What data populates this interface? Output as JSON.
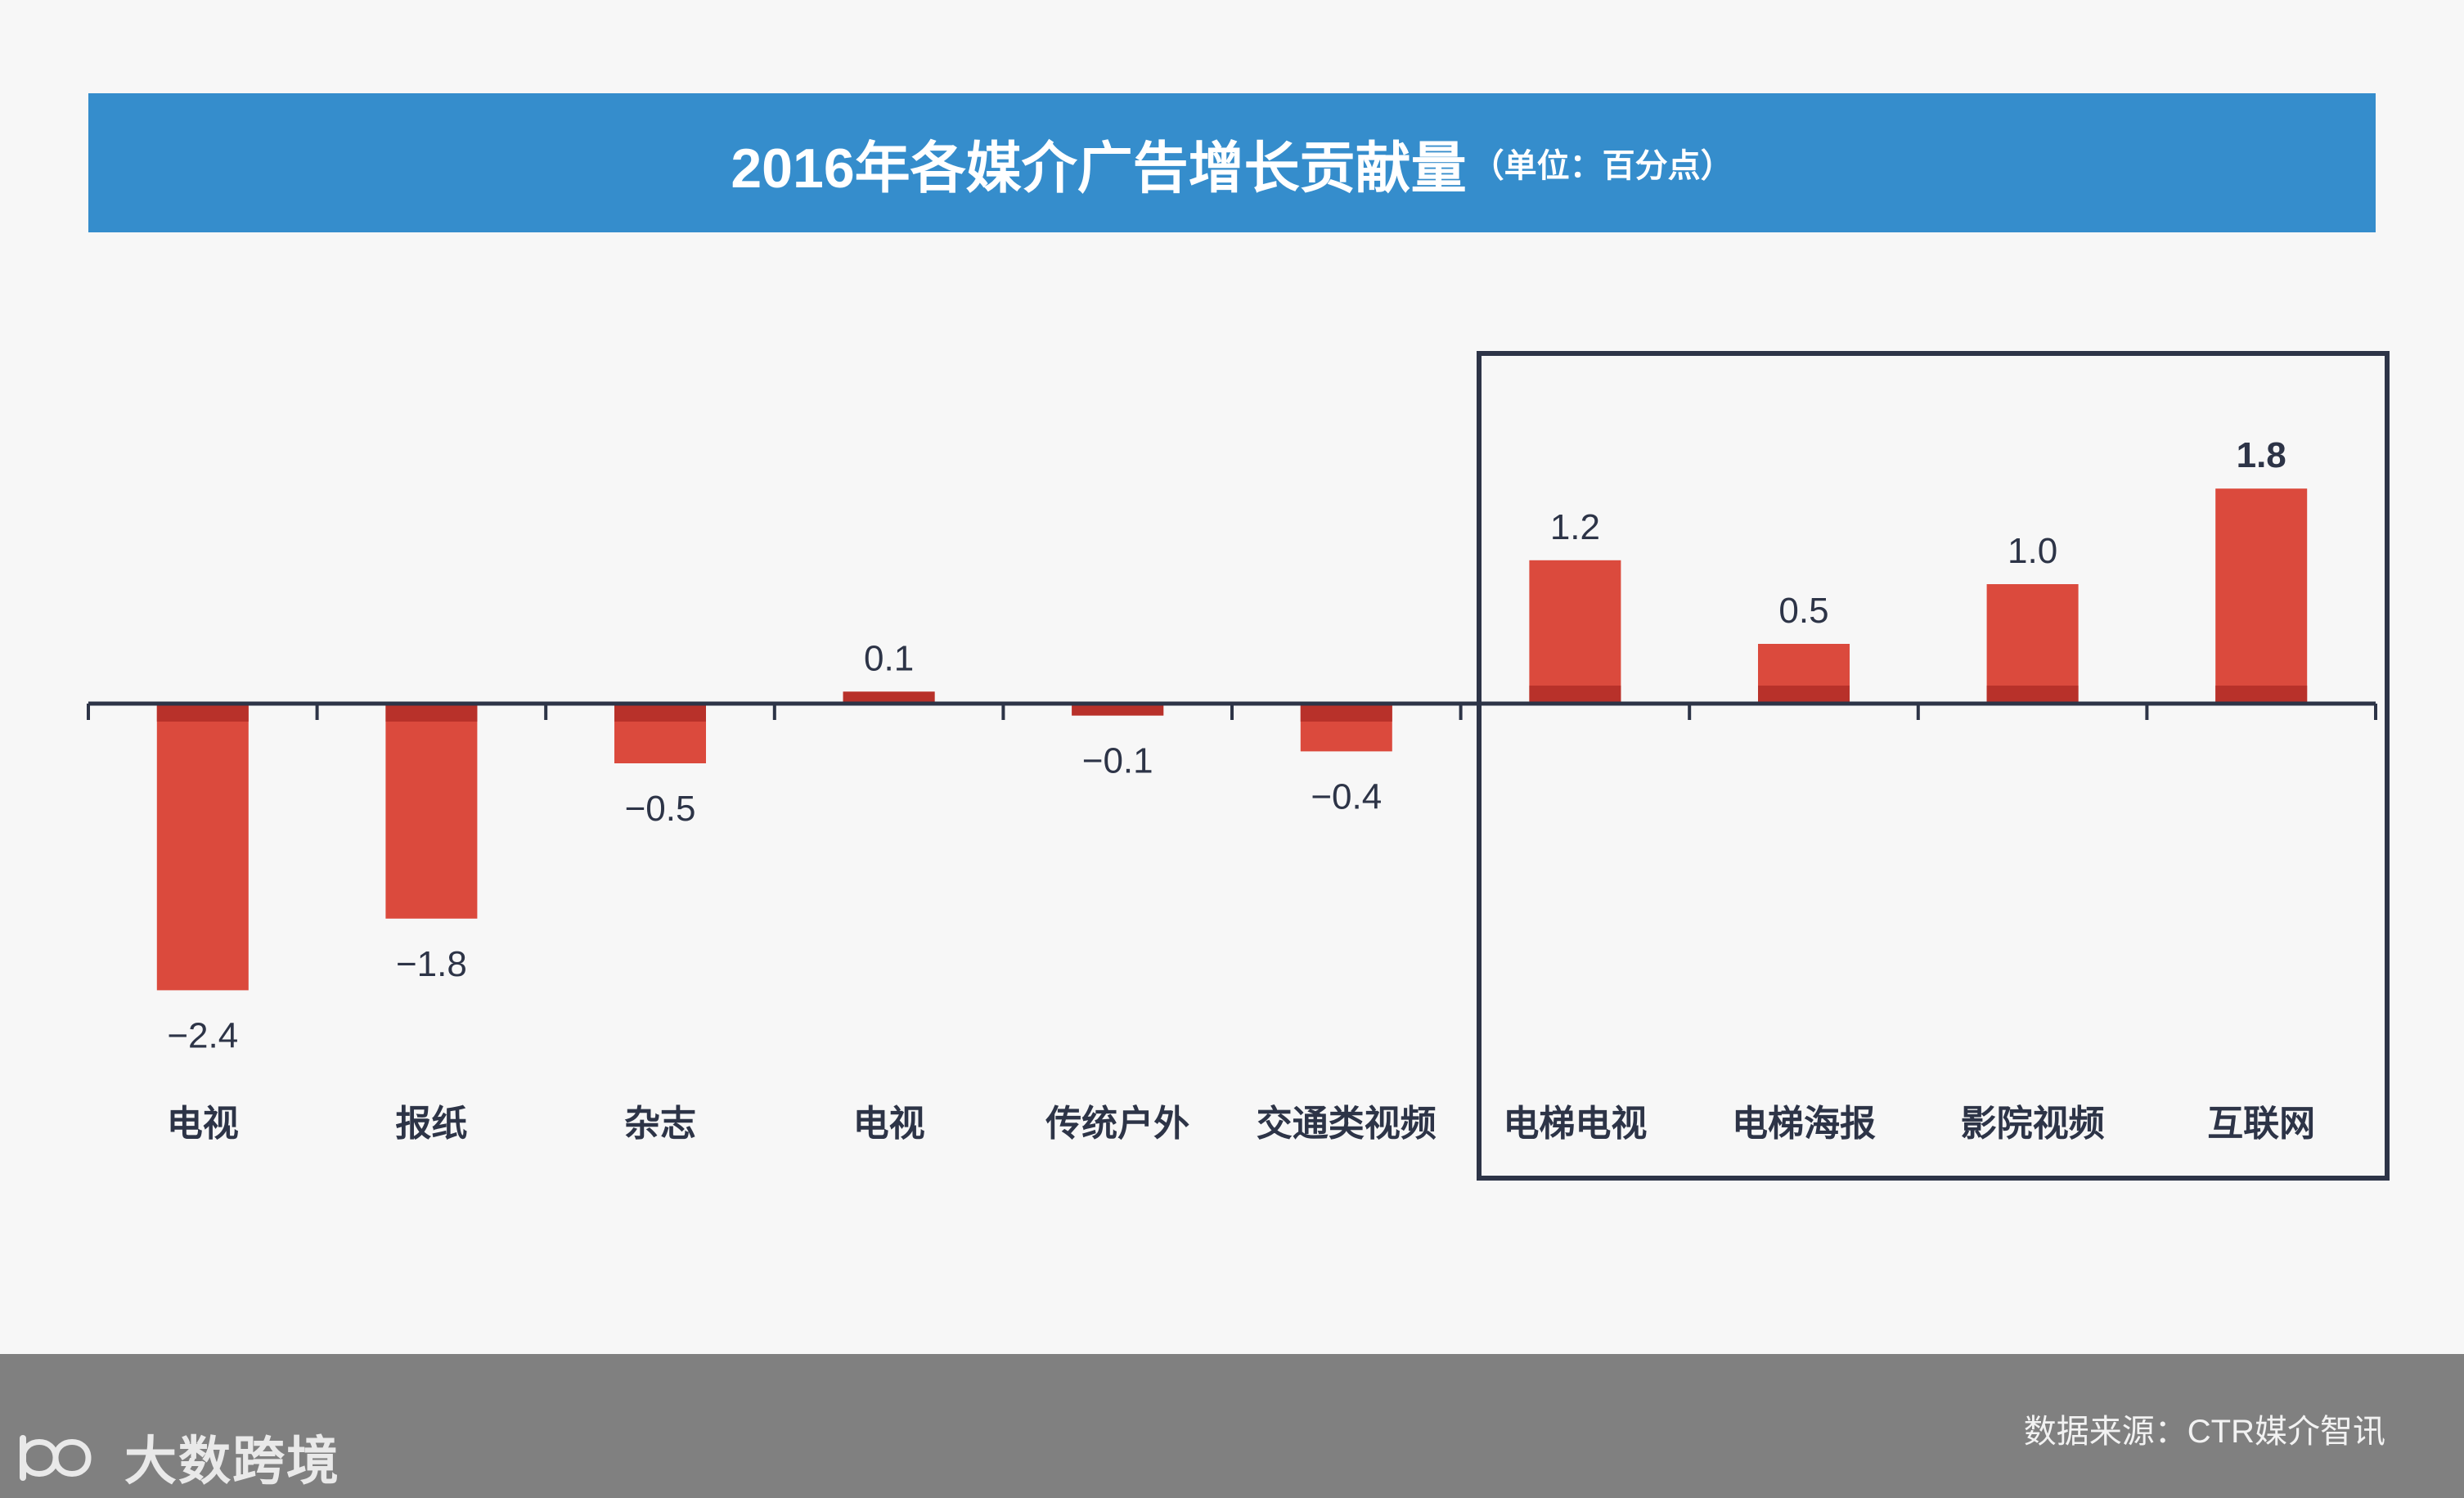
{
  "header": {
    "title": "2016年各媒介广告增长贡献量",
    "unit": "（单位：百分点）"
  },
  "chart_data": {
    "type": "bar",
    "title": "2016年各媒介广告增长贡献量",
    "subtitle": "（单位：百分点）",
    "categories": [
      "电视",
      "报纸",
      "杂志",
      "电视",
      "传统户外",
      "交通类视频",
      "电梯电视",
      "电梯海报",
      "影院视频",
      "互联网"
    ],
    "values": [
      -2.4,
      -1.8,
      -0.5,
      0.1,
      -0.1,
      -0.4,
      1.2,
      0.5,
      1.0,
      1.8
    ],
    "value_labels": [
      "−2.4",
      "−1.8",
      "−0.5",
      "0.1",
      "−0.1",
      "−0.4",
      "1.2",
      "0.5",
      "1.0",
      "1.8"
    ],
    "highlighted_categories": [
      "电梯电视",
      "电梯海报",
      "影院视频",
      "互联网"
    ],
    "bar_color": "#db4a3d",
    "bar_edge_color": "#b8312a",
    "axis_color": "#2d3447",
    "grid": false,
    "legend": "none"
  },
  "footer": {
    "logo_text": "大数跨境",
    "source": "数据来源：CTR媒介智讯"
  },
  "colors": {
    "title_bg": "#358dcc",
    "background": "#f7f7f7",
    "footer_bg": "#808080"
  }
}
